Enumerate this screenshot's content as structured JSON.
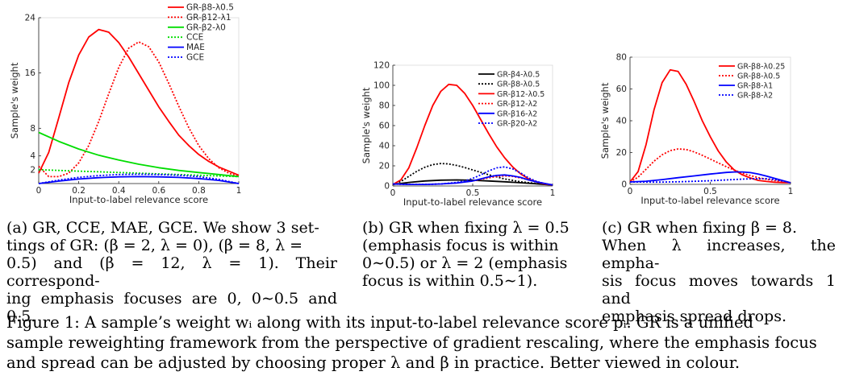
{
  "chart_data": [
    {
      "type": "line",
      "ylabel": "Sample's weight",
      "xlabel": "Input-to-label relevance score",
      "xlim": [
        0,
        1
      ],
      "ylim": [
        0,
        24
      ],
      "x_ticks": [
        "0",
        "0.2",
        "0.4",
        "0.6",
        "0.8",
        "1"
      ],
      "y_ticks": [
        "2",
        "4",
        "8",
        "16",
        "24"
      ],
      "x_tick_values": [
        0,
        0.2,
        0.4,
        0.6,
        0.8,
        1
      ],
      "y_tick_values": [
        2,
        4,
        8,
        16,
        24
      ],
      "legend_position": "top-right",
      "series": [
        {
          "name": "GR-β8-λ0.5",
          "color": "#ff0000",
          "dash": "solid",
          "x": [
            0,
            0.05,
            0.1,
            0.15,
            0.2,
            0.25,
            0.3,
            0.35,
            0.4,
            0.45,
            0.5,
            0.55,
            0.6,
            0.65,
            0.7,
            0.75,
            0.8,
            0.85,
            0.9,
            0.95,
            1
          ],
          "y": [
            1.5,
            4.5,
            9.5,
            14.6,
            18.6,
            21.2,
            22.3,
            21.9,
            20.4,
            18.3,
            15.9,
            13.5,
            11.1,
            9.0,
            7.0,
            5.5,
            4.2,
            3.2,
            2.4,
            1.8,
            1.2
          ]
        },
        {
          "name": "GR-β12-λ1",
          "color": "#ff0000",
          "dash": "dot",
          "x": [
            0,
            0.05,
            0.1,
            0.15,
            0.2,
            0.25,
            0.3,
            0.35,
            0.4,
            0.45,
            0.5,
            0.55,
            0.6,
            0.65,
            0.7,
            0.75,
            0.8,
            0.85,
            0.9,
            0.95,
            1
          ],
          "y": [
            2.5,
            1.0,
            1.0,
            1.5,
            3.0,
            5.5,
            9.0,
            13.0,
            16.8,
            19.6,
            20.5,
            19.8,
            17.6,
            14.5,
            11.2,
            8.1,
            5.5,
            3.6,
            2.3,
            1.5,
            1.0
          ]
        },
        {
          "name": "GR-β2-λ0",
          "color": "#00dd00",
          "dash": "solid",
          "x": [
            0,
            0.1,
            0.2,
            0.3,
            0.4,
            0.5,
            0.6,
            0.7,
            0.8,
            0.9,
            1
          ],
          "y": [
            7.4,
            6.1,
            5.0,
            4.1,
            3.4,
            2.8,
            2.3,
            1.9,
            1.6,
            1.3,
            1.0
          ]
        },
        {
          "name": "CCE",
          "color": "#00dd00",
          "dash": "dot",
          "x": [
            0,
            0.1,
            0.2,
            0.3,
            0.4,
            0.5,
            0.6,
            0.7,
            0.8,
            0.9,
            1
          ],
          "y": [
            2.0,
            1.9,
            1.8,
            1.7,
            1.6,
            1.5,
            1.4,
            1.3,
            1.2,
            1.1,
            1.0
          ]
        },
        {
          "name": "MAE",
          "color": "#0000ff",
          "dash": "solid",
          "x": [
            0,
            0.1,
            0.2,
            0.3,
            0.4,
            0.5,
            0.6,
            0.7,
            0.8,
            0.9,
            1
          ],
          "y": [
            0.0,
            0.35,
            0.65,
            0.85,
            0.97,
            1.0,
            0.97,
            0.88,
            0.72,
            0.45,
            0.0
          ]
        },
        {
          "name": "GCE",
          "color": "#0000ff",
          "dash": "dot",
          "x": [
            0,
            0.1,
            0.2,
            0.3,
            0.4,
            0.5,
            0.6,
            0.7,
            0.8,
            0.9,
            1
          ],
          "y": [
            0.0,
            0.5,
            0.9,
            1.15,
            1.3,
            1.35,
            1.3,
            1.2,
            1.0,
            0.6,
            0.0
          ]
        }
      ]
    },
    {
      "type": "line",
      "ylabel": "Sample's weight",
      "xlabel": "Input-to-label relevance score",
      "xlim": [
        0,
        1
      ],
      "ylim": [
        0,
        120
      ],
      "x_ticks": [
        "0",
        "0.5",
        "1"
      ],
      "y_ticks": [
        "0",
        "20",
        "40",
        "60",
        "80",
        "100",
        "120"
      ],
      "x_tick_values": [
        0,
        0.5,
        1
      ],
      "y_tick_values": [
        0,
        20,
        40,
        60,
        80,
        100,
        120
      ],
      "legend_position": "top-right",
      "series": [
        {
          "name": "GR-β4-λ0.5",
          "color": "#000000",
          "dash": "solid",
          "x": [
            0,
            0.1,
            0.2,
            0.3,
            0.4,
            0.5,
            0.6,
            0.7,
            0.8,
            0.9,
            1
          ],
          "y": [
            1.5,
            3.5,
            5.0,
            5.8,
            6.0,
            5.7,
            5.0,
            4.2,
            3.2,
            2.2,
            1.0
          ]
        },
        {
          "name": "GR-β8-λ0.5",
          "color": "#000000",
          "dash": "dot",
          "x": [
            0,
            0.05,
            0.1,
            0.15,
            0.2,
            0.25,
            0.3,
            0.35,
            0.4,
            0.45,
            0.5,
            0.55,
            0.6,
            0.7,
            0.8,
            0.9,
            1
          ],
          "y": [
            1.5,
            4.5,
            9.5,
            14.6,
            18.6,
            21.2,
            22.3,
            21.9,
            20.4,
            18.3,
            15.9,
            13.5,
            11.1,
            7.0,
            4.2,
            2.4,
            1.2
          ]
        },
        {
          "name": "GR-β12-λ0.5",
          "color": "#ff0000",
          "dash": "solid",
          "x": [
            0,
            0.05,
            0.1,
            0.15,
            0.2,
            0.25,
            0.3,
            0.35,
            0.4,
            0.45,
            0.5,
            0.55,
            0.6,
            0.65,
            0.7,
            0.75,
            0.8,
            0.85,
            0.9,
            0.95,
            1
          ],
          "y": [
            1.5,
            6,
            18,
            38,
            60,
            80,
            94,
            101,
            100,
            92,
            80,
            66,
            52,
            39,
            28,
            19,
            12,
            7,
            4,
            2,
            1
          ]
        },
        {
          "name": "GR-β12-λ2",
          "color": "#ff0000",
          "dash": "dot",
          "x": [
            0,
            0.1,
            0.2,
            0.3,
            0.4,
            0.5,
            0.55,
            0.6,
            0.65,
            0.7,
            0.75,
            0.8,
            0.85,
            0.9,
            0.95,
            1
          ],
          "y": [
            2,
            1.5,
            1.5,
            2,
            3,
            5,
            6.5,
            8,
            9.5,
            10,
            9.5,
            8,
            6,
            4,
            2.5,
            1
          ]
        },
        {
          "name": "GR-β16-λ2",
          "color": "#0000ff",
          "dash": "solid",
          "x": [
            0,
            0.1,
            0.2,
            0.3,
            0.4,
            0.5,
            0.55,
            0.6,
            0.65,
            0.7,
            0.75,
            0.8,
            0.85,
            0.9,
            0.95,
            1
          ],
          "y": [
            2,
            1.5,
            1.5,
            2,
            3,
            5,
            7,
            9,
            10.5,
            11,
            10,
            8.5,
            6,
            4,
            2.5,
            1
          ]
        },
        {
          "name": "GR-β20-λ2",
          "color": "#0000ff",
          "dash": "dot",
          "x": [
            0,
            0.1,
            0.2,
            0.3,
            0.4,
            0.45,
            0.5,
            0.55,
            0.6,
            0.65,
            0.7,
            0.75,
            0.8,
            0.85,
            0.9,
            0.95,
            1
          ],
          "y": [
            2,
            1.5,
            1.5,
            2,
            3.5,
            5,
            7.5,
            11,
            15,
            18,
            19,
            17,
            13,
            8,
            4.5,
            2.5,
            1
          ]
        }
      ]
    },
    {
      "type": "line",
      "ylabel": "Sample's weight",
      "xlabel": "Input-to-label relevance score",
      "xlim": [
        0,
        1
      ],
      "ylim": [
        0,
        80
      ],
      "x_ticks": [
        "0",
        "0.5",
        "1"
      ],
      "y_ticks": [
        "0",
        "20",
        "40",
        "60",
        "80"
      ],
      "x_tick_values": [
        0,
        0.5,
        1
      ],
      "y_tick_values": [
        0,
        20,
        40,
        60,
        80
      ],
      "legend_position": "top-right",
      "series": [
        {
          "name": "GR-β8-λ0.25",
          "color": "#ff0000",
          "dash": "solid",
          "x": [
            0,
            0.05,
            0.1,
            0.15,
            0.2,
            0.25,
            0.3,
            0.35,
            0.4,
            0.45,
            0.5,
            0.55,
            0.6,
            0.65,
            0.7,
            0.75,
            0.8,
            0.85,
            0.9,
            0.95,
            1
          ],
          "y": [
            1.5,
            8,
            25,
            47,
            64,
            72,
            71,
            63,
            52,
            40,
            30,
            21,
            14,
            9,
            6,
            4,
            2.5,
            1.8,
            1.3,
            1.1,
            1
          ]
        },
        {
          "name": "GR-β8-λ0.5",
          "color": "#ff0000",
          "dash": "dot",
          "x": [
            0,
            0.05,
            0.1,
            0.15,
            0.2,
            0.25,
            0.3,
            0.35,
            0.4,
            0.45,
            0.5,
            0.55,
            0.6,
            0.65,
            0.7,
            0.75,
            0.8,
            0.85,
            0.9,
            0.95,
            1
          ],
          "y": [
            1.5,
            4.5,
            9.5,
            14.6,
            18.6,
            21.2,
            22.3,
            21.9,
            20.4,
            18.3,
            15.9,
            13.5,
            11.1,
            9.0,
            7.0,
            5.5,
            4.2,
            3.2,
            2.4,
            1.8,
            1.2
          ]
        },
        {
          "name": "GR-β8-λ1",
          "color": "#0000ff",
          "dash": "solid",
          "x": [
            0,
            0.1,
            0.2,
            0.3,
            0.4,
            0.5,
            0.55,
            0.6,
            0.65,
            0.7,
            0.75,
            0.8,
            0.85,
            0.9,
            0.95,
            1
          ],
          "y": [
            1.5,
            2,
            3,
            4.2,
            5.3,
            6.5,
            7,
            7.5,
            7.8,
            7.8,
            7.4,
            6.5,
            5.2,
            3.8,
            2.4,
            1
          ]
        },
        {
          "name": "GR-β8-λ2",
          "color": "#0000ff",
          "dash": "dot",
          "x": [
            0,
            0.1,
            0.2,
            0.3,
            0.4,
            0.5,
            0.6,
            0.7,
            0.75,
            0.8,
            0.85,
            0.9,
            0.95,
            1
          ],
          "y": [
            1.5,
            1.4,
            1.4,
            1.6,
            1.9,
            2.3,
            2.8,
            3.3,
            3.5,
            3.6,
            3.5,
            3.0,
            2.2,
            1
          ]
        }
      ]
    }
  ],
  "captions": {
    "a": [
      "(a) GR, CCE, MAE, GCE. We show 3 set-",
      "tings of GR: (β = 2, λ = 0), (β = 8, λ =",
      "0.5) and (β = 12, λ = 1). Their correspond-",
      "ing emphasis focuses are 0, 0∼0.5 and 0.5."
    ],
    "b": [
      "(b) GR when fixing λ = 0.5",
      "(emphasis focus is within",
      "0∼0.5) or λ = 2 (emphasis",
      "focus is within 0.5∼1)."
    ],
    "c": [
      "(c) GR when fixing β = 8.",
      "When λ increases, the empha-",
      "sis focus moves towards 1 and",
      "emphasis spread drops."
    ],
    "figure": [
      "Figure 1: A sample’s weight wᵢ along with its input-to-label relevance score pᵢ. GR is a unified",
      "sample reweighting framework from the perspective of gradient rescaling, where the emphasis focus",
      "and spread can be adjusted by choosing proper λ and β in practice. Better viewed in colour."
    ]
  }
}
